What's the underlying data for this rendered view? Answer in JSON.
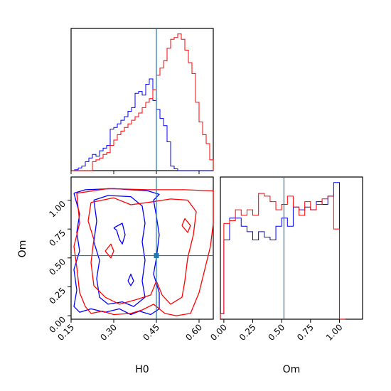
{
  "chart_data": {
    "type": "corner",
    "parameters": [
      "H0",
      "Om"
    ],
    "truth": {
      "H0": 0.45,
      "Om": 0.52
    },
    "truth_color": "#1f77b4",
    "series_colors": {
      "red": "#ff0000",
      "blue": "#0000ff"
    },
    "xlabels": {
      "H0": "H0",
      "Om": "Om"
    },
    "ylabels": {
      "Om": "Om"
    },
    "ticks": {
      "H0": {
        "values": [
          0.15,
          0.3,
          0.45,
          0.6
        ],
        "labels": [
          "0.15",
          "0.30",
          "0.45",
          "0.60"
        ],
        "range": [
          0.15,
          0.65
        ]
      },
      "Om_y": {
        "values": [
          0.0,
          0.25,
          0.5,
          0.75,
          1.0
        ],
        "labels": [
          "0.00",
          "0.25",
          "0.50",
          "0.75",
          "1.00"
        ],
        "range": [
          -0.03,
          1.2
        ]
      },
      "Om_x": {
        "values": [
          0.0,
          0.25,
          0.5,
          0.75,
          1.0
        ],
        "labels": [
          "0.00",
          "0.25",
          "0.50",
          "0.75",
          "1.00"
        ],
        "range": [
          -0.03,
          1.2
        ]
      }
    },
    "hist_H0": {
      "edges": [
        0.15,
        0.1625,
        0.175,
        0.1875,
        0.2,
        0.2125,
        0.225,
        0.2375,
        0.25,
        0.2625,
        0.275,
        0.2875,
        0.3,
        0.3125,
        0.325,
        0.3375,
        0.35,
        0.3625,
        0.375,
        0.3875,
        0.4,
        0.4125,
        0.425,
        0.4375,
        0.45,
        0.4625,
        0.475,
        0.4875,
        0.5,
        0.5125,
        0.525,
        0.5375,
        0.55,
        0.5625,
        0.575,
        0.5875,
        0.6,
        0.6125,
        0.625,
        0.6375,
        0.65
      ],
      "blue": [
        0.0,
        0.01,
        0.03,
        0.05,
        0.1,
        0.14,
        0.18,
        0.16,
        0.22,
        0.25,
        0.28,
        0.46,
        0.48,
        0.52,
        0.56,
        0.6,
        0.66,
        0.7,
        0.86,
        0.88,
        0.84,
        0.96,
        1.02,
        0.78,
        0.68,
        0.58,
        0.5,
        0.32,
        0.05,
        0.02,
        0.0,
        0.0,
        0.0,
        0.0,
        0.0,
        0.0,
        0.0,
        0.0,
        0.0,
        0.0
      ],
      "red": [
        0.0,
        0.0,
        0.0,
        0.0,
        0.0,
        0.0,
        0.1,
        0.12,
        0.14,
        0.18,
        0.2,
        0.28,
        0.34,
        0.4,
        0.44,
        0.48,
        0.52,
        0.56,
        0.6,
        0.64,
        0.7,
        0.76,
        0.8,
        0.9,
        1.06,
        1.14,
        1.22,
        1.36,
        1.46,
        1.48,
        1.52,
        1.46,
        1.34,
        1.2,
        1.08,
        0.76,
        0.54,
        0.4,
        0.3,
        0.12
      ]
    },
    "hist_Om": {
      "edges": [
        -0.03,
        0.0,
        0.05,
        0.1,
        0.15,
        0.2,
        0.25,
        0.3,
        0.35,
        0.4,
        0.45,
        0.5,
        0.55,
        0.6,
        0.65,
        0.7,
        0.75,
        0.8,
        0.85,
        0.9,
        0.95,
        1.0,
        1.05
      ],
      "blue": [
        0.04,
        0.58,
        0.74,
        0.74,
        0.68,
        0.64,
        0.58,
        0.64,
        0.6,
        0.58,
        0.68,
        0.74,
        0.68,
        0.82,
        0.8,
        0.82,
        0.8,
        0.86,
        0.84,
        0.9,
        1.0,
        0.0
      ],
      "red": [
        0.04,
        0.7,
        0.72,
        0.8,
        0.76,
        0.8,
        0.76,
        0.92,
        0.9,
        0.86,
        0.8,
        0.84,
        0.9,
        0.82,
        0.76,
        0.86,
        0.8,
        0.84,
        0.88,
        0.9,
        0.66,
        0.0
      ]
    },
    "contours": {
      "blue": [
        [
          [
            0.16,
            1.06
          ],
          [
            0.2,
            1.09
          ],
          [
            0.3,
            1.1
          ],
          [
            0.42,
            1.08
          ],
          [
            0.46,
            1.05
          ],
          [
            0.44,
            1.0
          ],
          [
            0.45,
            0.86
          ],
          [
            0.46,
            0.7
          ],
          [
            0.45,
            0.5
          ],
          [
            0.44,
            0.36
          ],
          [
            0.46,
            0.2
          ],
          [
            0.46,
            0.06
          ],
          [
            0.43,
            0.01
          ],
          [
            0.39,
            0.04
          ],
          [
            0.36,
            0.01
          ],
          [
            0.32,
            0.06
          ],
          [
            0.27,
            0.03
          ],
          [
            0.22,
            0.06
          ],
          [
            0.18,
            0.03
          ],
          [
            0.16,
            0.08
          ],
          [
            0.17,
            0.22
          ],
          [
            0.16,
            0.4
          ],
          [
            0.18,
            0.56
          ],
          [
            0.17,
            0.72
          ],
          [
            0.18,
            0.88
          ],
          [
            0.16,
            1.06
          ]
        ],
        [
          [
            0.23,
            1.0
          ],
          [
            0.28,
            1.04
          ],
          [
            0.36,
            1.03
          ],
          [
            0.4,
            0.95
          ],
          [
            0.41,
            0.8
          ],
          [
            0.4,
            0.64
          ],
          [
            0.41,
            0.48
          ],
          [
            0.4,
            0.3
          ],
          [
            0.41,
            0.16
          ],
          [
            0.37,
            0.08
          ],
          [
            0.33,
            0.12
          ],
          [
            0.28,
            0.1
          ],
          [
            0.25,
            0.16
          ],
          [
            0.24,
            0.32
          ],
          [
            0.25,
            0.48
          ],
          [
            0.23,
            0.64
          ],
          [
            0.24,
            0.82
          ],
          [
            0.23,
            1.0
          ]
        ],
        [
          [
            0.3,
            0.76
          ],
          [
            0.33,
            0.8
          ],
          [
            0.34,
            0.7
          ],
          [
            0.33,
            0.62
          ],
          [
            0.32,
            0.66
          ],
          [
            0.31,
            0.74
          ],
          [
            0.3,
            0.76
          ]
        ],
        [
          [
            0.35,
            0.3
          ],
          [
            0.36,
            0.36
          ],
          [
            0.37,
            0.3
          ],
          [
            0.36,
            0.26
          ],
          [
            0.35,
            0.3
          ]
        ]
      ],
      "red": [
        [
          [
            0.17,
            1.06
          ],
          [
            0.28,
            1.1
          ],
          [
            0.42,
            1.09
          ],
          [
            0.55,
            1.09
          ],
          [
            0.65,
            1.08
          ],
          [
            0.65,
            0.8
          ],
          [
            0.64,
            0.6
          ],
          [
            0.62,
            0.4
          ],
          [
            0.6,
            0.2
          ],
          [
            0.57,
            0.02
          ],
          [
            0.52,
            0.0
          ],
          [
            0.48,
            0.02
          ],
          [
            0.44,
            0.1
          ],
          [
            0.4,
            0.05
          ],
          [
            0.36,
            0.02
          ],
          [
            0.3,
            0.01
          ],
          [
            0.26,
            0.04
          ],
          [
            0.22,
            0.02
          ],
          [
            0.2,
            0.08
          ],
          [
            0.18,
            0.2
          ],
          [
            0.17,
            0.42
          ],
          [
            0.16,
            0.6
          ],
          [
            0.18,
            0.8
          ],
          [
            0.17,
            1.06
          ]
        ],
        [
          [
            0.22,
            0.98
          ],
          [
            0.3,
            1.02
          ],
          [
            0.36,
            0.96
          ],
          [
            0.42,
            0.98
          ],
          [
            0.5,
            1.01
          ],
          [
            0.56,
            1.0
          ],
          [
            0.59,
            0.9
          ],
          [
            0.58,
            0.7
          ],
          [
            0.56,
            0.5
          ],
          [
            0.55,
            0.3
          ],
          [
            0.54,
            0.16
          ],
          [
            0.5,
            0.1
          ],
          [
            0.47,
            0.18
          ],
          [
            0.45,
            0.3
          ],
          [
            0.43,
            0.18
          ],
          [
            0.38,
            0.14
          ],
          [
            0.32,
            0.1
          ],
          [
            0.27,
            0.16
          ],
          [
            0.23,
            0.26
          ],
          [
            0.22,
            0.46
          ],
          [
            0.23,
            0.66
          ],
          [
            0.21,
            0.82
          ],
          [
            0.22,
            0.98
          ]
        ],
        [
          [
            0.54,
            0.78
          ],
          [
            0.55,
            0.84
          ],
          [
            0.57,
            0.78
          ],
          [
            0.56,
            0.72
          ],
          [
            0.54,
            0.78
          ]
        ],
        [
          [
            0.27,
            0.56
          ],
          [
            0.29,
            0.62
          ],
          [
            0.3,
            0.56
          ],
          [
            0.29,
            0.5
          ],
          [
            0.27,
            0.56
          ]
        ]
      ]
    }
  }
}
